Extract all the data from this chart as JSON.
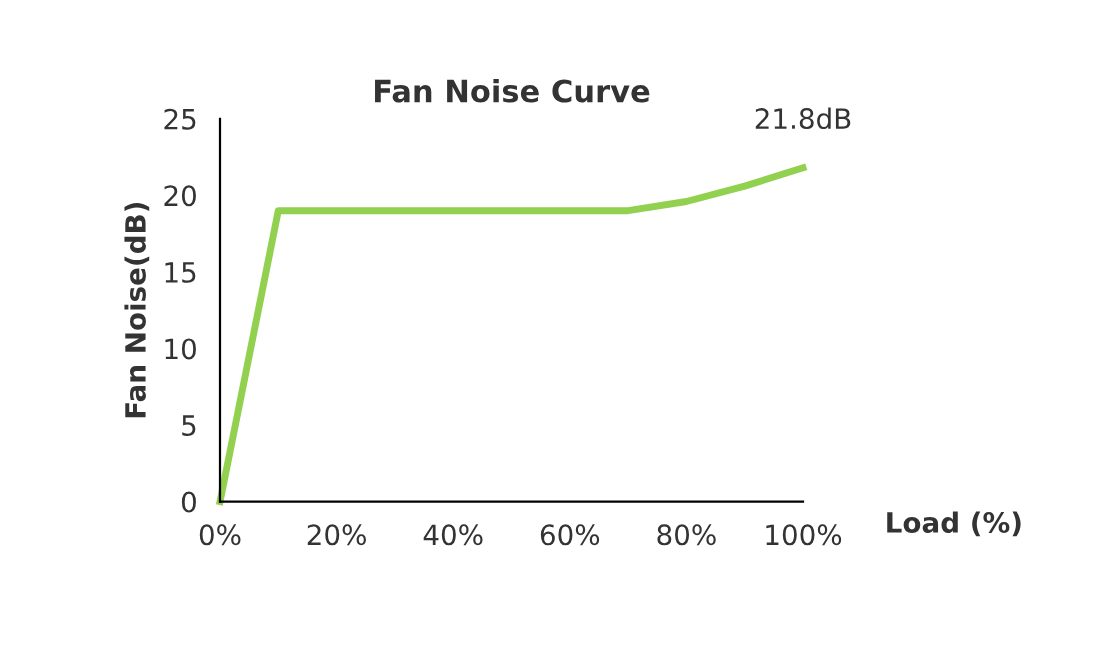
{
  "chart_data": {
    "type": "line",
    "title": "Fan Noise Curve",
    "xlabel": "Load (%)",
    "ylabel": "Fan Noise(dB)",
    "x": [
      0,
      10,
      20,
      30,
      40,
      50,
      60,
      70,
      80,
      90,
      100
    ],
    "series": [
      {
        "color": "#92d050",
        "values": [
          0,
          19,
          19,
          19,
          19,
          19,
          19,
          19,
          19.6,
          20.6,
          21.8
        ]
      }
    ],
    "xlim": [
      0,
      100
    ],
    "xticks": [
      {
        "value": 0,
        "label": "0%"
      },
      {
        "value": 20,
        "label": "20%"
      },
      {
        "value": 40,
        "label": "40%"
      },
      {
        "value": 60,
        "label": "60%"
      },
      {
        "value": 80,
        "label": "80%"
      },
      {
        "value": 100,
        "label": "100%"
      }
    ],
    "ylim": [
      0,
      25
    ],
    "yticks": [
      0,
      5,
      10,
      15,
      20,
      25
    ],
    "annotations": [
      {
        "text": "21.8dB",
        "x": 100,
        "y": 21.8
      }
    ],
    "grid": false,
    "marker": "none",
    "line_style": "solid"
  }
}
